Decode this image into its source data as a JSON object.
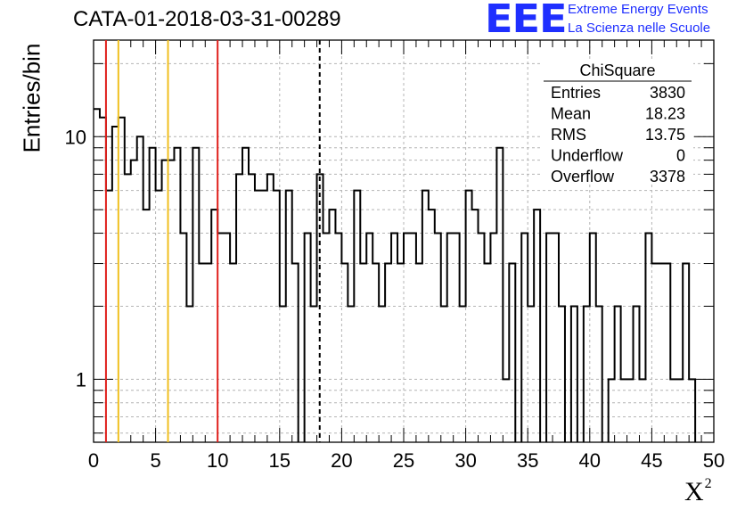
{
  "header": {
    "run_title": "CATA-01-2018-03-31-00289",
    "logo_text": "EEE",
    "logo_line1": "Extreme Energy Events",
    "logo_line2": "La Scienza nelle Scuole"
  },
  "colors": {
    "logo": "#1f2fff",
    "red_lines": "#e0201c",
    "orange_lines": "#f0c020",
    "histogram": "#000000"
  },
  "chart_data": {
    "type": "histogram",
    "title": "CATA-01-2018-03-31-00289",
    "xlabel": "X²",
    "xlabel_main": "X",
    "xlabel_sup": "2",
    "ylabel": "Entries/bin",
    "y_scale": "log",
    "xlim": [
      0,
      50
    ],
    "ylim": [
      0.55,
      25
    ],
    "x_ticks": [
      0,
      5,
      10,
      15,
      20,
      25,
      30,
      35,
      40,
      45,
      50
    ],
    "x_tick_labels": [
      "0",
      "5",
      "10",
      "15",
      "20",
      "25",
      "30",
      "35",
      "40",
      "45",
      "50"
    ],
    "y_tick_labels": [
      {
        "value": 1,
        "label": "1"
      },
      {
        "value": 10,
        "label": "10"
      }
    ],
    "grid": true,
    "bin_width": 0.5,
    "bin_start": 0,
    "bin_values": [
      13,
      12,
      6,
      11,
      12,
      7,
      8,
      10,
      5,
      9,
      6,
      8,
      8,
      9,
      4,
      2,
      9,
      3,
      3,
      5,
      4,
      4,
      3,
      7,
      9,
      7,
      6,
      6,
      7,
      6,
      2,
      6,
      3,
      0,
      4,
      2,
      7,
      4,
      5,
      4,
      3,
      2,
      6,
      3,
      4,
      3,
      2,
      3,
      4,
      3,
      4,
      4,
      3,
      6,
      5,
      4,
      2,
      4,
      4,
      2,
      6,
      5,
      4,
      3,
      4,
      9,
      1,
      3,
      0,
      4,
      2,
      5,
      0,
      4,
      4,
      2,
      0,
      2,
      0,
      2,
      4,
      2,
      0,
      1,
      2,
      1,
      1,
      2,
      1,
      4,
      3,
      3,
      3,
      1,
      1,
      3,
      1,
      0,
      0,
      0
    ],
    "vertical_lines": [
      {
        "x": 1,
        "color": "red"
      },
      {
        "x": 2,
        "color": "orange"
      },
      {
        "x": 6,
        "color": "orange"
      },
      {
        "x": 10,
        "color": "red"
      },
      {
        "x": 18.23,
        "color": "black",
        "style": "dashed"
      }
    ],
    "stats_box": {
      "title": "ChiSquare",
      "rows": [
        {
          "label": "Entries",
          "value": "3830"
        },
        {
          "label": "Mean",
          "value": "18.23"
        },
        {
          "label": "RMS",
          "value": "13.75"
        },
        {
          "label": "Underflow",
          "value": "0"
        },
        {
          "label": "Overflow",
          "value": "3378"
        }
      ]
    }
  }
}
